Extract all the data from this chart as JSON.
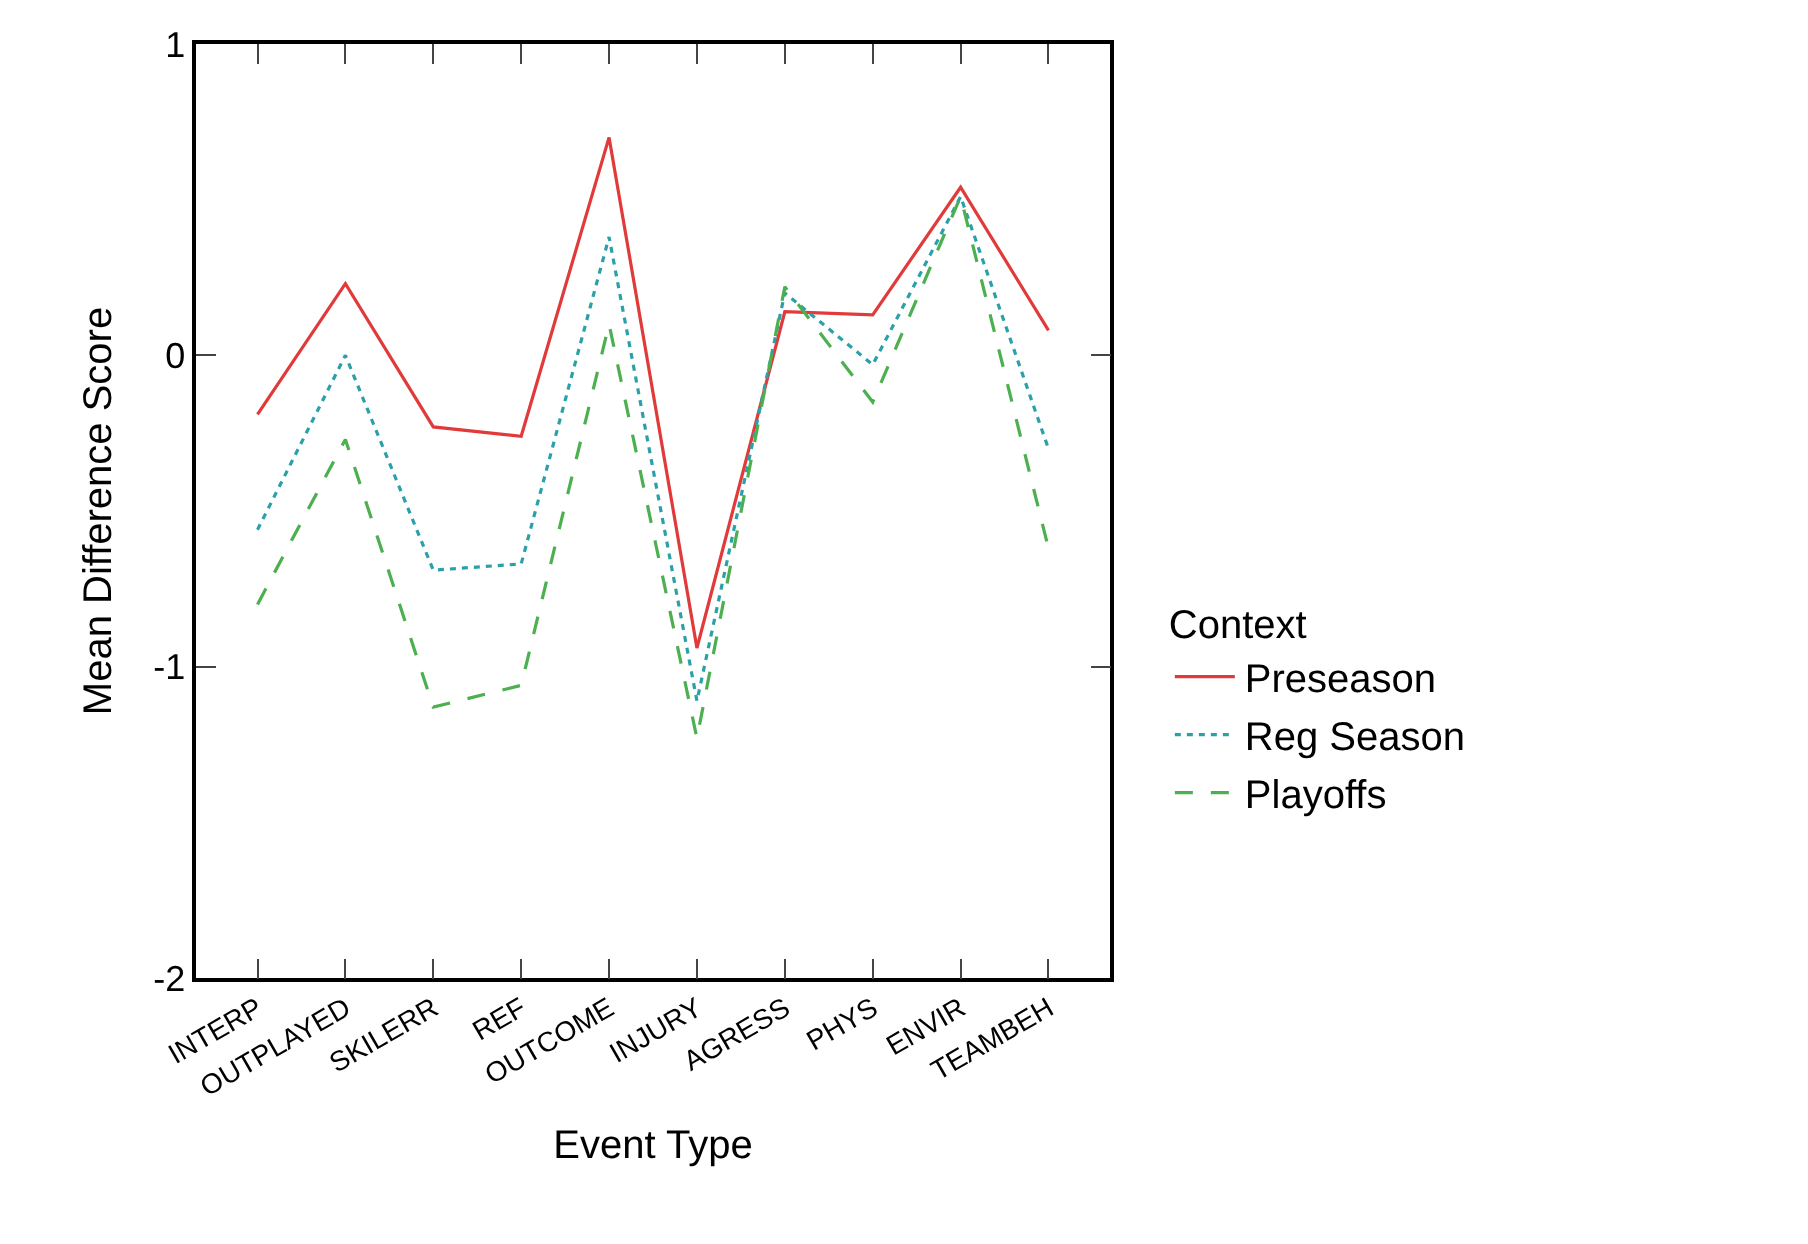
{
  "chart_data": {
    "type": "line",
    "xlabel": "Event Type",
    "ylabel": "Mean Difference Score",
    "legend_title": "Context",
    "categories": [
      "INTERP",
      "OUTPLAYED",
      "SKILERR",
      "REF",
      "OUTCOME",
      "INJURY",
      "AGRESS",
      "PHYS",
      "ENVIR",
      "TEAMBEH"
    ],
    "series": [
      {
        "name": "Preseason",
        "color": "#e03a3a",
        "line_style": "solid",
        "values": [
          -0.19,
          0.23,
          -0.23,
          -0.26,
          0.7,
          -0.94,
          0.14,
          0.13,
          0.54,
          0.08
        ]
      },
      {
        "name": "Reg Season",
        "color": "#2aa0a8",
        "line_style": "dotted",
        "values": [
          -0.56,
          0.0,
          -0.69,
          -0.67,
          0.38,
          -1.11,
          0.2,
          -0.03,
          0.51,
          -0.3
        ]
      },
      {
        "name": "Playoffs",
        "color": "#4caf50",
        "line_style": "dashed",
        "values": [
          -0.8,
          -0.27,
          -1.13,
          -1.06,
          0.1,
          -1.23,
          0.22,
          -0.15,
          0.51,
          -0.62
        ]
      }
    ],
    "ylim": [
      -2,
      1
    ],
    "yticks": [
      -2,
      -1,
      0,
      1
    ],
    "legend": "right",
    "marker": "none"
  }
}
